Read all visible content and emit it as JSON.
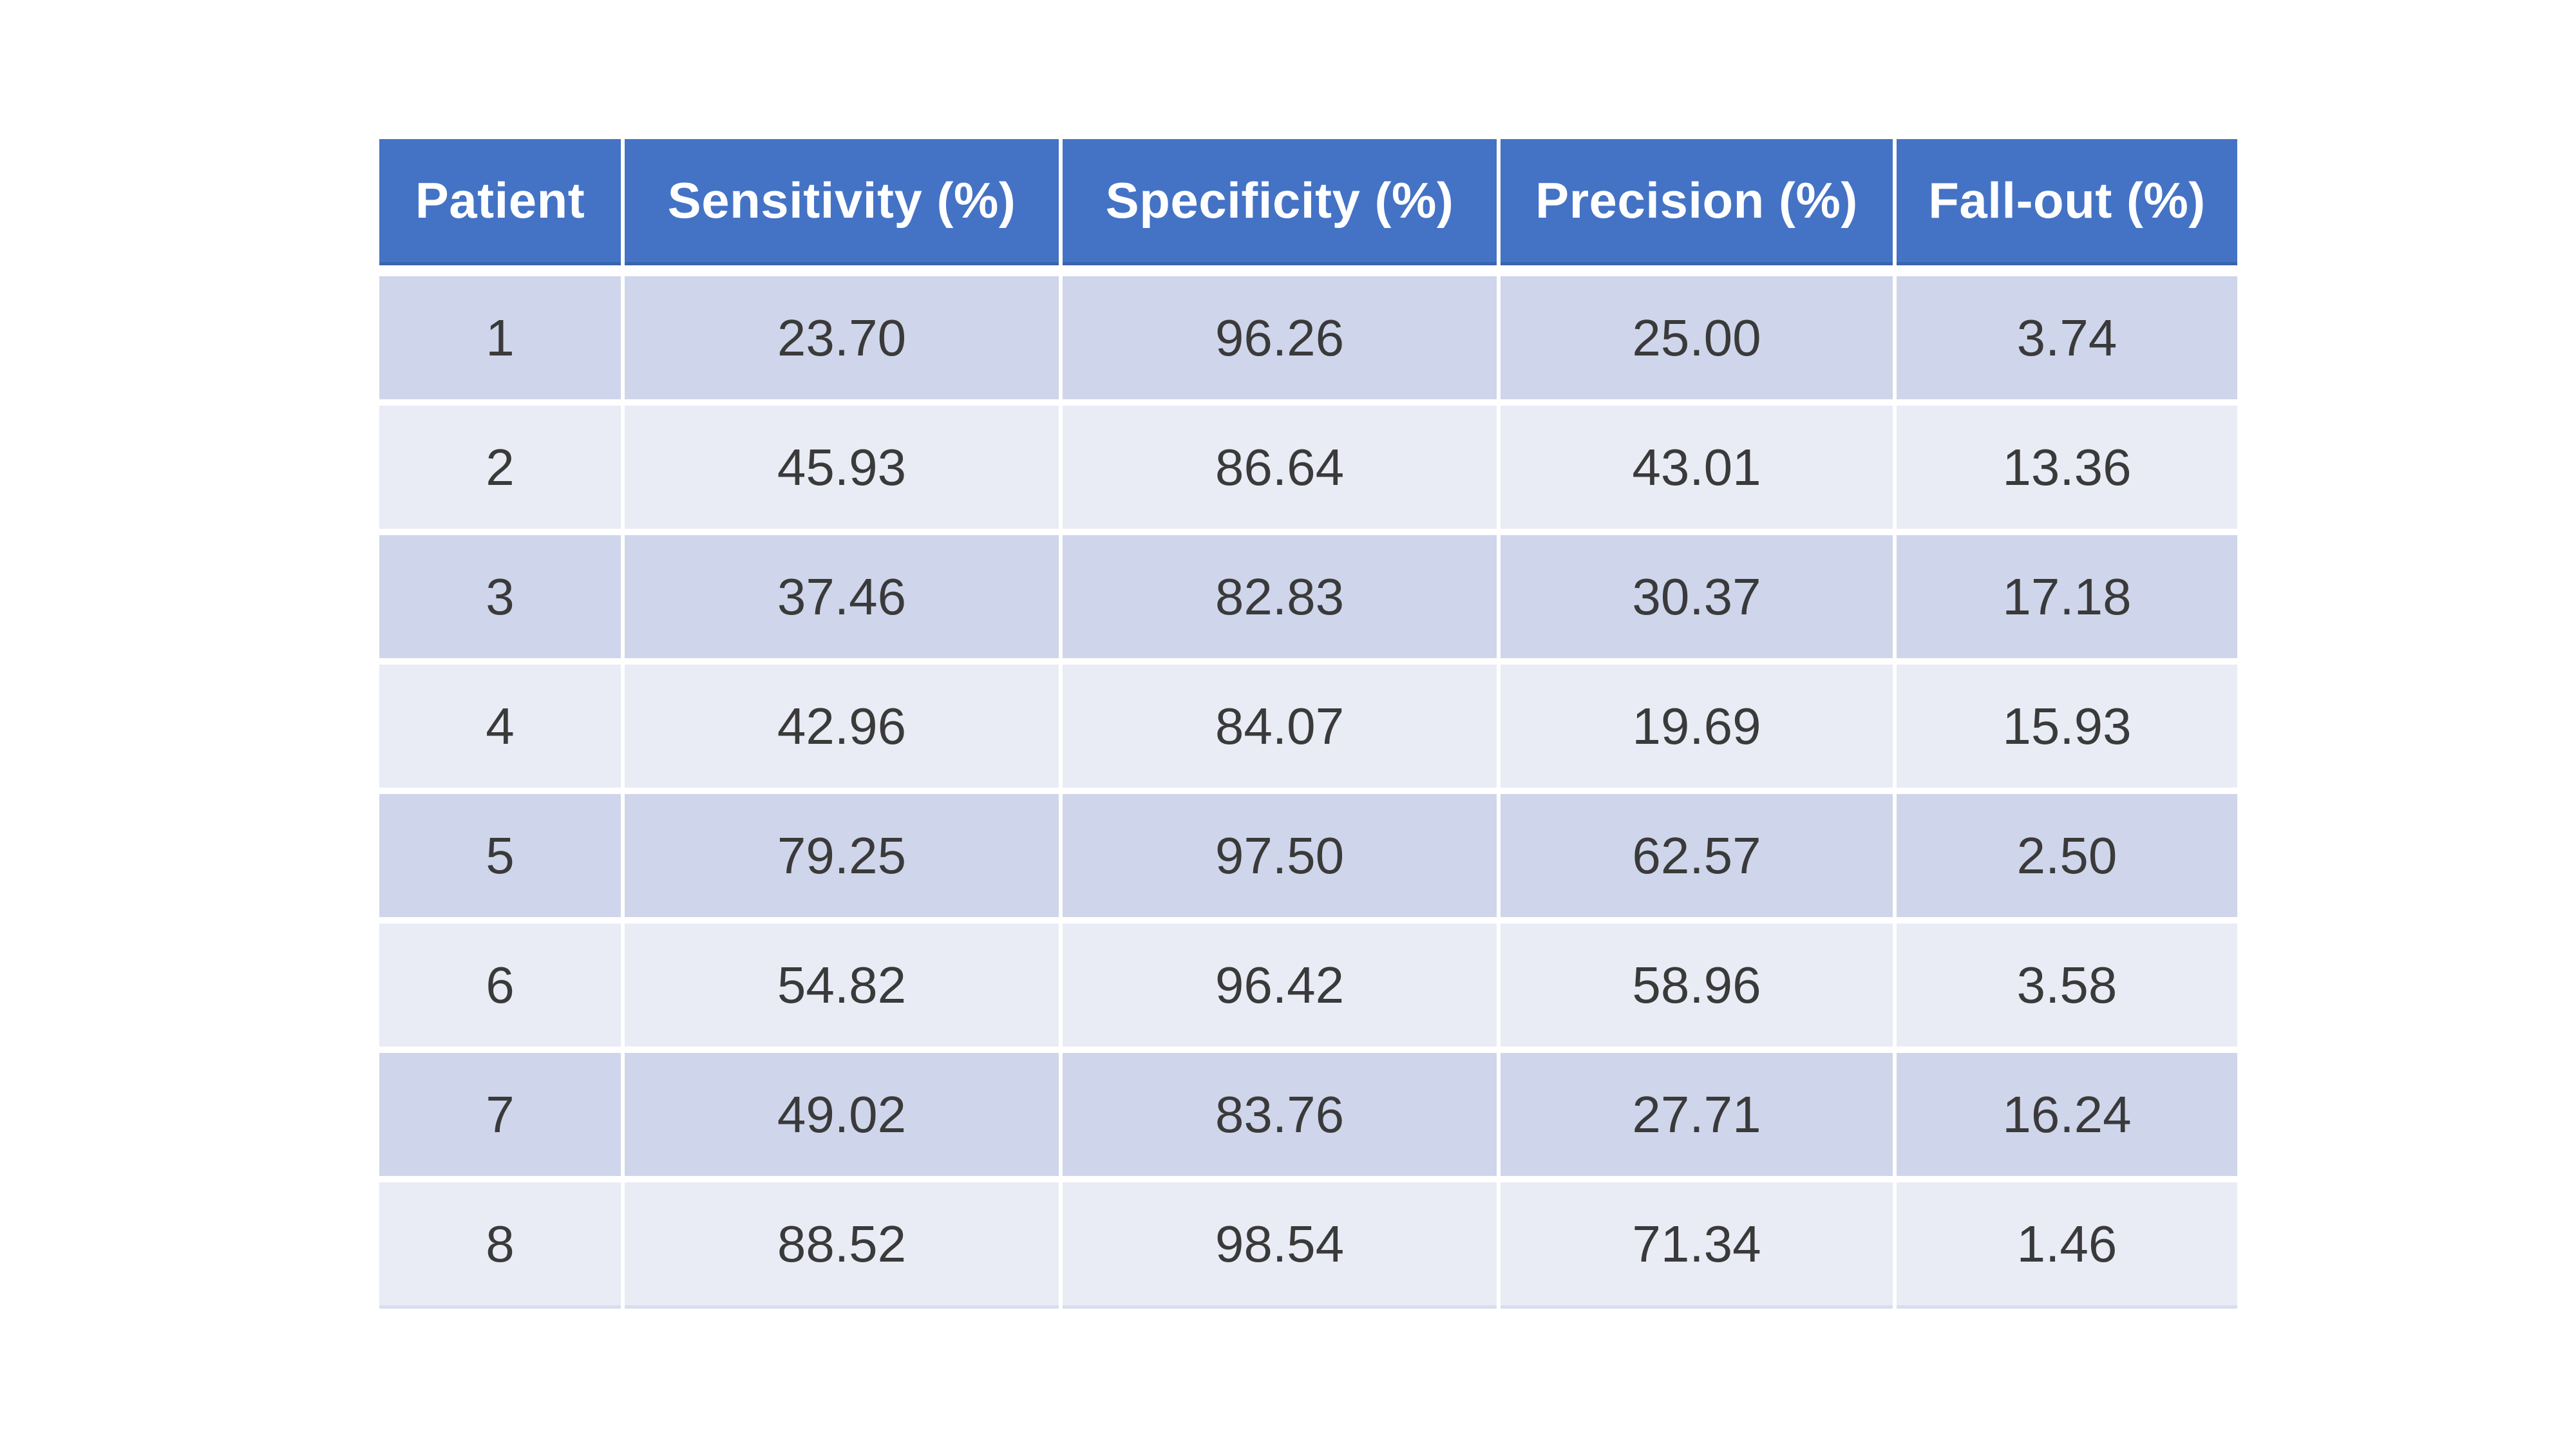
{
  "table": {
    "columns": {
      "patient": "Patient",
      "sensitivity": "Sensitivity (%)",
      "specificity": "Specificity (%)",
      "precision": "Precision (%)",
      "fallout": "Fall-out (%)"
    },
    "rows": [
      {
        "patient": "1",
        "sensitivity": "23.70",
        "specificity": "96.26",
        "precision": "25.00",
        "fallout": "3.74"
      },
      {
        "patient": "2",
        "sensitivity": "45.93",
        "specificity": "86.64",
        "precision": "43.01",
        "fallout": "13.36"
      },
      {
        "patient": "3",
        "sensitivity": "37.46",
        "specificity": "82.83",
        "precision": "30.37",
        "fallout": "17.18"
      },
      {
        "patient": "4",
        "sensitivity": "42.96",
        "specificity": "84.07",
        "precision": "19.69",
        "fallout": "15.93"
      },
      {
        "patient": "5",
        "sensitivity": "79.25",
        "specificity": "97.50",
        "precision": "62.57",
        "fallout": "2.50"
      },
      {
        "patient": "6",
        "sensitivity": "54.82",
        "specificity": "96.42",
        "precision": "58.96",
        "fallout": "3.58"
      },
      {
        "patient": "7",
        "sensitivity": "49.02",
        "specificity": "83.76",
        "precision": "27.71",
        "fallout": "16.24"
      },
      {
        "patient": "8",
        "sensitivity": "88.52",
        "specificity": "98.54",
        "precision": "71.34",
        "fallout": "1.46"
      }
    ],
    "colors": {
      "header_bg": "#4473C5",
      "header_text": "#FFFFFF",
      "header_bottom_edge": "#3A63AB",
      "row_odd_bg": "#CFD5EA",
      "row_even_bg": "#E9EBF5",
      "cell_text": "#3A3A3A",
      "table_bottom_edge": "#D9DDEC",
      "page_bg": "#FFFFFF"
    }
  },
  "chart_data": {
    "type": "table",
    "title": "",
    "columns": [
      "Patient",
      "Sensitivity (%)",
      "Specificity (%)",
      "Precision (%)",
      "Fall-out (%)"
    ],
    "rows": [
      [
        1,
        23.7,
        96.26,
        25.0,
        3.74
      ],
      [
        2,
        45.93,
        86.64,
        43.01,
        13.36
      ],
      [
        3,
        37.46,
        82.83,
        30.37,
        17.18
      ],
      [
        4,
        42.96,
        84.07,
        19.69,
        15.93
      ],
      [
        5,
        79.25,
        97.5,
        62.57,
        2.5
      ],
      [
        6,
        54.82,
        96.42,
        58.96,
        3.58
      ],
      [
        7,
        49.02,
        83.76,
        27.71,
        16.24
      ],
      [
        8,
        88.52,
        98.54,
        71.34,
        1.46
      ]
    ],
    "layout": {
      "banded_rows": true,
      "header_fill": "#4473C5",
      "legend": "none",
      "grid": "white-separators"
    }
  }
}
